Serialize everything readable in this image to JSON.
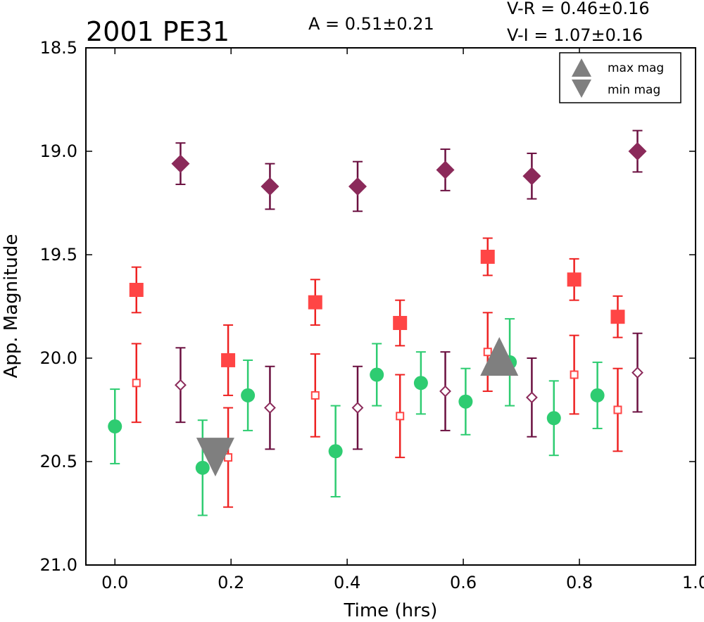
{
  "chart_data": {
    "type": "scatter",
    "title": "2001 PE31",
    "amplitude_label": "A  = 0.51±0.21",
    "color_labels": [
      "V-R = 0.46±0.16",
      "V-I  = 1.07±0.16"
    ],
    "xlabel": "Time (hrs)",
    "ylabel": "App. Magnitude",
    "xlim": [
      -0.05,
      1.0
    ],
    "ylim": [
      21.0,
      18.5
    ],
    "y_inverted": true,
    "xticks": [
      0.0,
      0.2,
      0.4,
      0.6,
      0.8,
      1.0
    ],
    "xtick_labels": [
      "0.0",
      "0.2",
      "0.4",
      "0.6",
      "0.8",
      "1.0"
    ],
    "yticks": [
      18.5,
      19.0,
      19.5,
      20.0,
      20.5,
      21.0
    ],
    "ytick_labels": [
      "18.5",
      "19.0",
      "19.5",
      "20.0",
      "20.5",
      "21.0"
    ],
    "grid": false,
    "legend": {
      "placement": "top-right",
      "entries": [
        {
          "label": "max mag",
          "marker": "triangle-up",
          "color": "#7f7f7f"
        },
        {
          "label": "min mag",
          "marker": "triangle-down",
          "color": "#7f7f7f"
        }
      ]
    },
    "series": [
      {
        "marker": "circle",
        "filled": true,
        "color": "#2ecc71",
        "errcolor": "#2ecc71",
        "x": [
          0.0,
          0.151,
          0.229,
          0.38,
          0.451,
          0.527,
          0.604,
          0.68,
          0.756,
          0.831
        ],
        "y": [
          20.33,
          20.53,
          20.18,
          20.45,
          20.08,
          20.12,
          20.21,
          20.02,
          20.29,
          20.18
        ],
        "err": [
          0.18,
          0.23,
          0.17,
          0.22,
          0.15,
          0.15,
          0.16,
          0.21,
          0.18,
          0.16
        ]
      },
      {
        "marker": "square",
        "filled": true,
        "color": "#ff4545",
        "errcolor": "#ee2222",
        "x": [
          0.037,
          0.195,
          0.345,
          0.491,
          0.642,
          0.791,
          0.866
        ],
        "y": [
          19.67,
          20.01,
          19.73,
          19.83,
          19.51,
          19.62,
          19.8
        ],
        "err": [
          0.11,
          0.17,
          0.11,
          0.11,
          0.09,
          0.1,
          0.1
        ]
      },
      {
        "marker": "square",
        "filled": false,
        "color": "#ff4545",
        "errcolor": "#ee2222",
        "x": [
          0.037,
          0.195,
          0.345,
          0.491,
          0.642,
          0.791,
          0.866
        ],
        "y": [
          20.12,
          20.48,
          20.18,
          20.28,
          19.97,
          20.08,
          20.25
        ],
        "err": [
          0.19,
          0.24,
          0.2,
          0.2,
          0.19,
          0.19,
          0.2
        ]
      },
      {
        "marker": "diamond",
        "filled": true,
        "color": "#8b2a5a",
        "errcolor": "#6b1040",
        "x": [
          0.113,
          0.267,
          0.418,
          0.569,
          0.718,
          0.9
        ],
        "y": [
          19.06,
          19.17,
          19.17,
          19.09,
          19.12,
          19.0
        ],
        "err": [
          0.1,
          0.11,
          0.12,
          0.1,
          0.11,
          0.1
        ]
      },
      {
        "marker": "diamond",
        "filled": false,
        "color": "#8b2a5a",
        "errcolor": "#6b1040",
        "x": [
          0.113,
          0.267,
          0.418,
          0.569,
          0.718,
          0.9
        ],
        "y": [
          20.13,
          20.24,
          20.24,
          20.16,
          20.19,
          20.07
        ],
        "err": [
          0.18,
          0.2,
          0.2,
          0.19,
          0.19,
          0.19
        ]
      }
    ],
    "extrema": [
      {
        "kind": "max",
        "marker": "triangle-up",
        "x": 0.662,
        "y": 20.0,
        "color": "#7f7f7f"
      },
      {
        "kind": "min",
        "marker": "triangle-down",
        "x": 0.173,
        "y": 20.48,
        "color": "#7f7f7f"
      }
    ]
  }
}
